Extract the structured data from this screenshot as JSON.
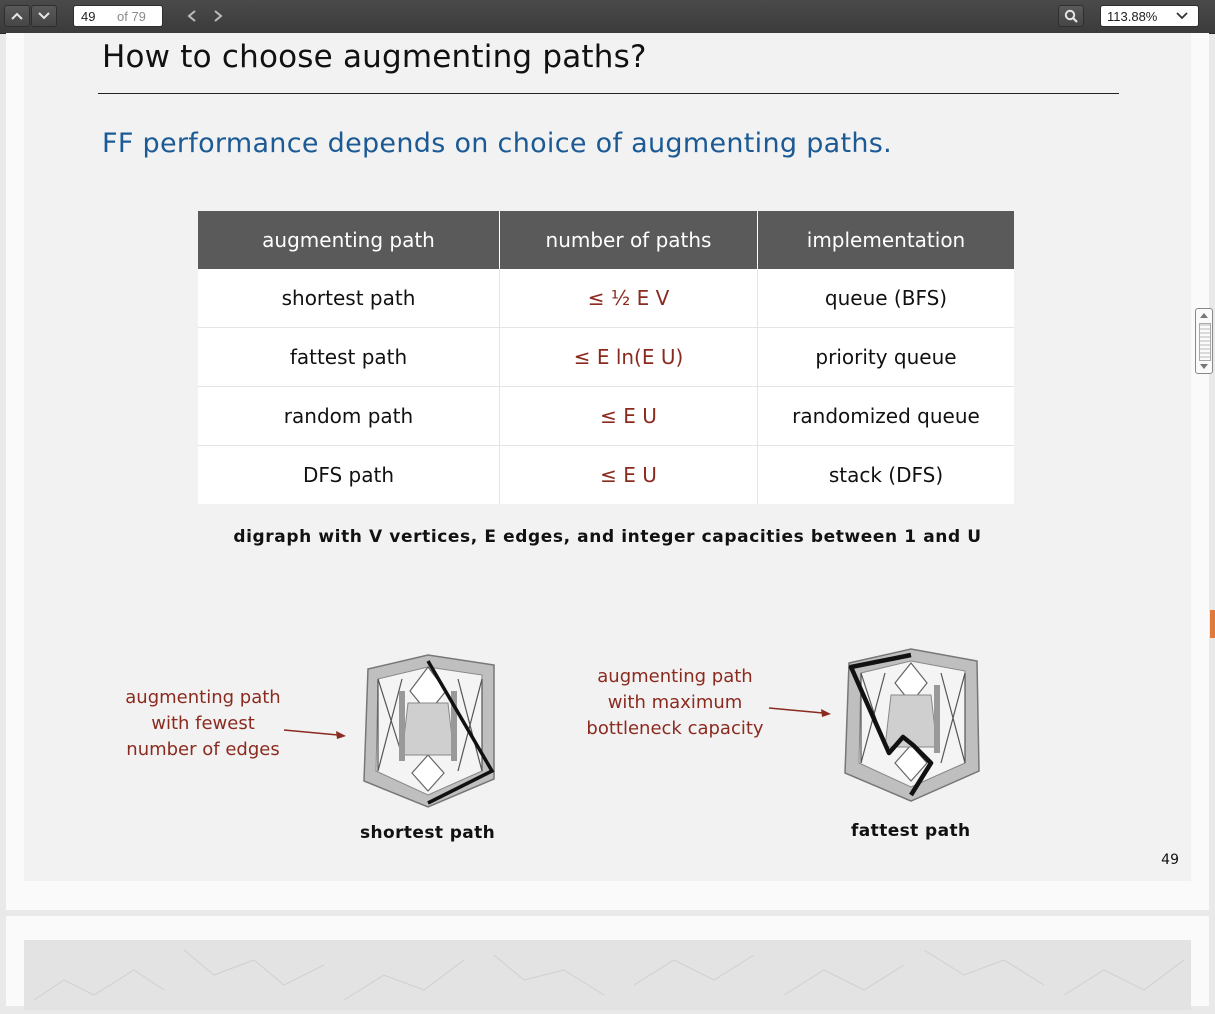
{
  "toolbar": {
    "page_number": "49",
    "page_count": "of 79",
    "zoom": "113.88%",
    "icons": [
      "chevron-up-icon",
      "chevron-down-icon",
      "chevron-left-icon",
      "chevron-right-icon",
      "search-icon"
    ]
  },
  "slide": {
    "title": "How to choose augmenting paths?",
    "subtitle": "FF performance depends on choice of augmenting paths.",
    "table": {
      "headers": [
        "augmenting path",
        "number of paths",
        "implementation"
      ],
      "rows": [
        {
          "path": "shortest path",
          "bound": "≤  ½ E V",
          "impl": "queue (BFS)"
        },
        {
          "path": "fattest path",
          "bound": "≤ E ln(E U)",
          "impl": "priority queue"
        },
        {
          "path": "random path",
          "bound": "≤ E U",
          "impl": "randomized queue"
        },
        {
          "path": "DFS path",
          "bound": "≤ E U",
          "impl": "stack (DFS)"
        }
      ]
    },
    "caption": "digraph with V vertices, E edges, and integer capacities between 1 and U",
    "left_annotation": [
      "augmenting path",
      "with fewest",
      "number of edges"
    ],
    "right_annotation": [
      "augmenting path",
      "with maximum",
      "bottleneck capacity"
    ],
    "left_label": "shortest path",
    "right_label": "fattest path",
    "page_number": "49"
  },
  "colors": {
    "accent_blue": "#1b5a95",
    "annotation_red": "#8b2a1f",
    "table_header": "#5a5a5a"
  }
}
